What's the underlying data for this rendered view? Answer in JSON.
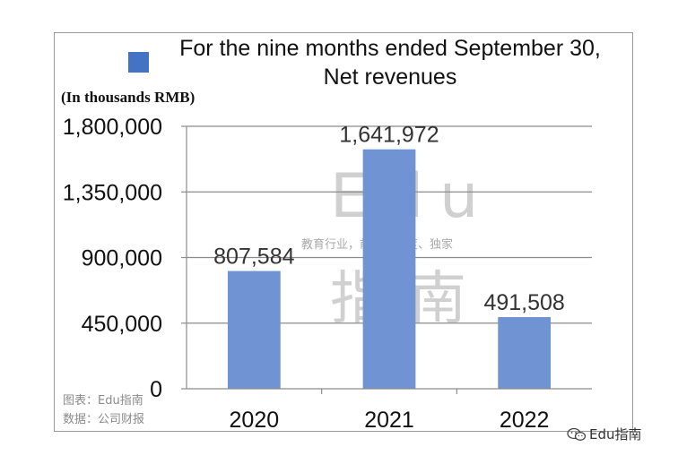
{
  "chart_data": {
    "type": "bar",
    "legend": [
      "For the nine months ended September 30,",
      "Net revenues"
    ],
    "legend_position": "top",
    "ylabel": "(In thousands RMB)",
    "categories": [
      "2020",
      "2021",
      "2022"
    ],
    "values": [
      807584,
      1641972,
      491508
    ],
    "data_labels": [
      "807,584",
      "1,641,972",
      "491,508"
    ],
    "ylim": [
      0,
      1800000
    ],
    "yticks": [
      0,
      450000,
      900000,
      1350000,
      1800000
    ],
    "ytick_labels": [
      "0",
      "450,000",
      "900,000",
      "1,350,000",
      "1,800,000"
    ],
    "grid": true,
    "bar_color": "#6f93d3",
    "swatch_color": "#4472c4"
  },
  "credits": {
    "chart_by": "图表：Edu指南",
    "source": "数据：公司财报"
  },
  "watermark": {
    "latin": "Edu",
    "tagline": "教育行业，前沿、深度、独家",
    "chinese": "指南"
  },
  "brand": {
    "icon": "wechat-icon",
    "text": "Edu指南"
  }
}
